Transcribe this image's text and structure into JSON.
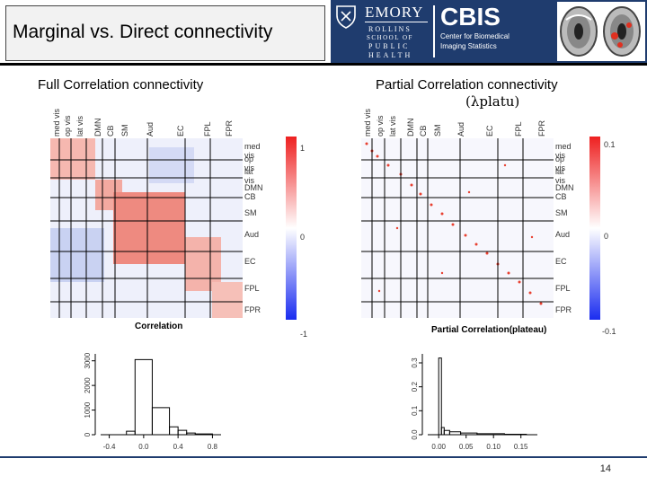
{
  "slide": {
    "title": "Marginal vs. Direct connectivity",
    "page_number": "14"
  },
  "banner": {
    "emory": "EMORY",
    "school_lines": [
      "ROLLINS",
      "SCHOOL OF",
      "PUBLIC",
      "HEALTH"
    ],
    "cbis": "CBIS",
    "cbis_lines": [
      "Center for Biomedical",
      "Imaging Statistics"
    ],
    "colors": {
      "navy": "#1f3c6e",
      "white": "#ffffff"
    }
  },
  "left_panel": {
    "heading": "Full Correlation connectivity",
    "matrix_caption": "Correlation",
    "top_labels": [
      "med vis",
      "op vis",
      "lat vis",
      "DMN",
      "CB",
      "SM",
      "Aud",
      "EC",
      "FPL",
      "FPR"
    ],
    "right_labels": [
      "med vis",
      "op vis",
      "lat vis",
      "DMN",
      "CB",
      "SM",
      "Aud",
      "EC",
      "FPL",
      "FPR"
    ],
    "colorbar_ticks": [
      "1",
      "0",
      "-1"
    ]
  },
  "right_panel": {
    "heading": "Partial Correlation connectivity",
    "heading_symbol": "(λplatu)",
    "matrix_caption": "Partial Correlation(plateau)",
    "top_labels": [
      "med vis",
      "op vis",
      "lat vis",
      "DMN",
      "CB",
      "SM",
      "Aud",
      "EC",
      "FPL",
      "FPR"
    ],
    "right_labels": [
      "med vis",
      "op vis",
      "lat vis",
      "DMN",
      "CB",
      "SM",
      "Aud",
      "EC",
      "FPL",
      "FPR"
    ],
    "colorbar_ticks": [
      "0.1",
      "0",
      "-0.1"
    ]
  },
  "chart_data": [
    {
      "type": "bar",
      "x_tick_labels": [
        "-0.4",
        "0.0",
        "0.4",
        "0.8"
      ],
      "y_tick_labels": [
        "0",
        "1000",
        "2000",
        "3000"
      ],
      "xlim": [
        -0.5,
        0.9
      ],
      "ylim": [
        0,
        3500
      ],
      "bins": [
        {
          "x0": -0.2,
          "x1": -0.1,
          "count": 140
        },
        {
          "x0": -0.1,
          "x1": 0.1,
          "count": 3050
        },
        {
          "x0": 0.1,
          "x1": 0.3,
          "count": 1100
        },
        {
          "x0": 0.3,
          "x1": 0.4,
          "count": 320
        },
        {
          "x0": 0.4,
          "x1": 0.5,
          "count": 180
        },
        {
          "x0": 0.5,
          "x1": 0.6,
          "count": 70
        },
        {
          "x0": 0.6,
          "x1": 0.8,
          "count": 30
        }
      ]
    },
    {
      "type": "bar",
      "x_tick_labels": [
        "0.00",
        "0.05",
        "0.10",
        "0.15"
      ],
      "y_tick_labels": [
        "0.0",
        "0.1",
        "0.2",
        "0.3"
      ],
      "xlim": [
        -0.02,
        0.18
      ],
      "ylim": [
        0,
        0.36
      ],
      "bins": [
        {
          "x0": 0.0,
          "x1": 0.005,
          "count": 0.32
        },
        {
          "x0": 0.005,
          "x1": 0.01,
          "count": 0.03
        },
        {
          "x0": 0.01,
          "x1": 0.02,
          "count": 0.018
        },
        {
          "x0": 0.02,
          "x1": 0.04,
          "count": 0.012
        },
        {
          "x0": 0.04,
          "x1": 0.07,
          "count": 0.007
        },
        {
          "x0": 0.07,
          "x1": 0.12,
          "count": 0.004
        },
        {
          "x0": 0.12,
          "x1": 0.16,
          "count": 0.002
        }
      ]
    }
  ]
}
